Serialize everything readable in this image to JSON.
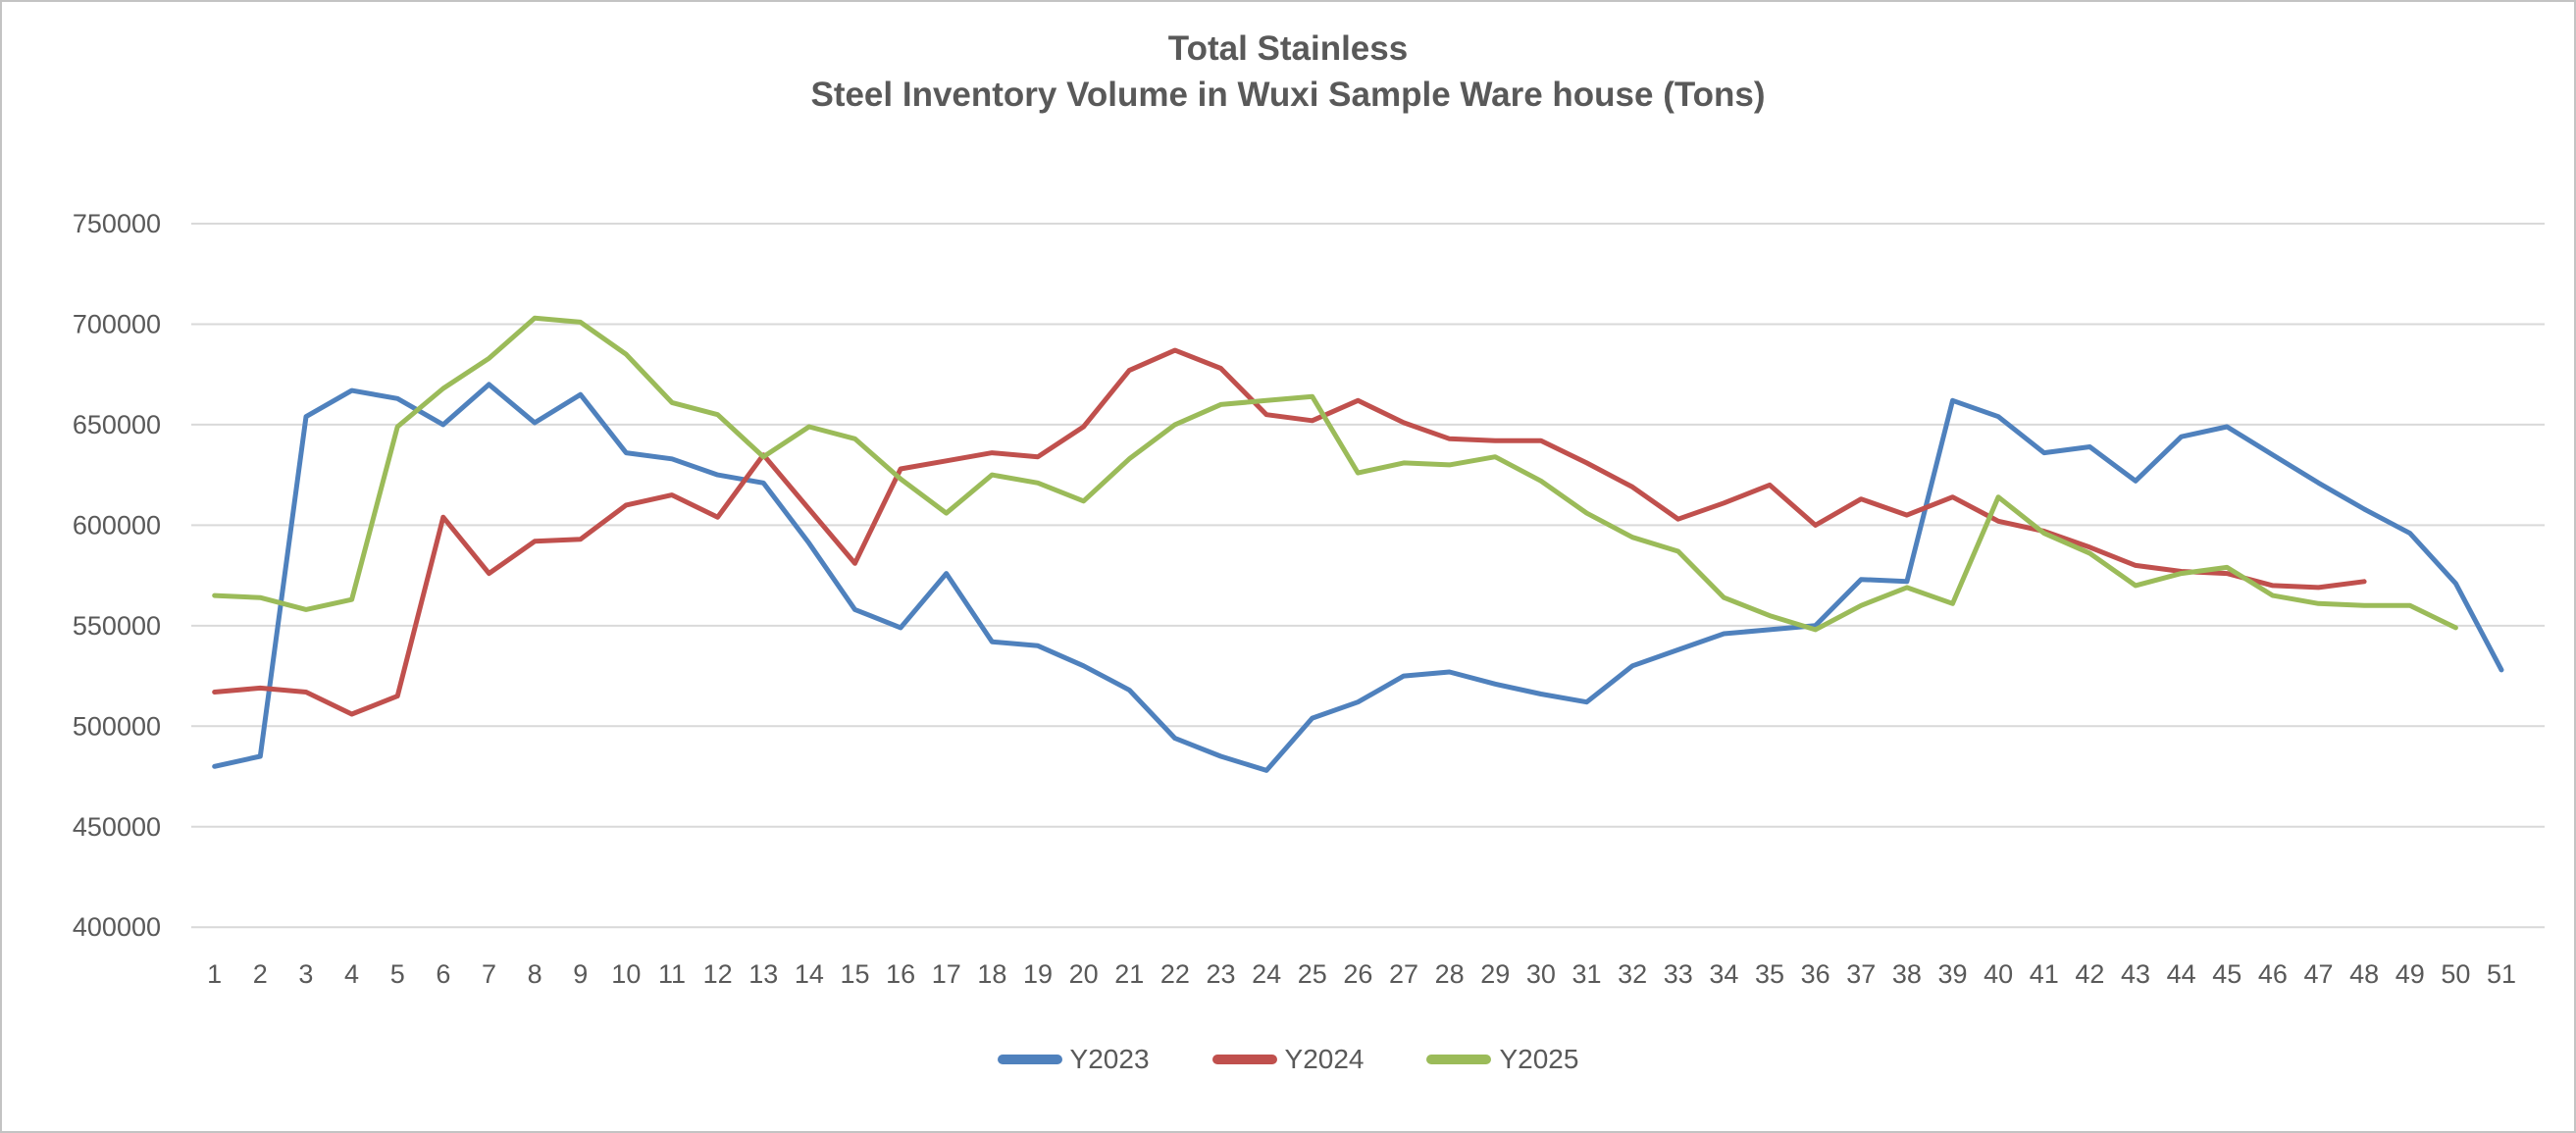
{
  "chart_data": {
    "type": "line",
    "title_line1": "Total Stainless",
    "title_line2": "Steel Inventory Volume in Wuxi Sample Ware house (Tons)",
    "xlabel": "",
    "ylabel": "",
    "ylim": [
      400000,
      750000
    ],
    "grid": true,
    "legend_position": "bottom",
    "y_ticks": [
      "750000",
      "700000",
      "650000",
      "600000",
      "550000",
      "500000",
      "450000",
      "400000"
    ],
    "x": [
      "1",
      "2",
      "3",
      "4",
      "5",
      "6",
      "7",
      "8",
      "9",
      "10",
      "11",
      "12",
      "13",
      "14",
      "15",
      "16",
      "17",
      "18",
      "19",
      "20",
      "21",
      "22",
      "23",
      "24",
      "25",
      "26",
      "27",
      "28",
      "29",
      "30",
      "31",
      "32",
      "33",
      "34",
      "35",
      "36",
      "37",
      "38",
      "39",
      "40",
      "41",
      "42",
      "43",
      "44",
      "45",
      "46",
      "47",
      "48",
      "49",
      "50",
      "51"
    ],
    "series": [
      {
        "name": "Y2023",
        "color": "#4F81BD",
        "values": [
          480000,
          485000,
          654000,
          667000,
          663000,
          650000,
          670000,
          651000,
          665000,
          636000,
          633000,
          625000,
          621000,
          591000,
          558000,
          549000,
          576000,
          542000,
          540000,
          530000,
          518000,
          494000,
          485000,
          478000,
          504000,
          512000,
          525000,
          527000,
          521000,
          516000,
          512000,
          530000,
          538000,
          546000,
          548000,
          550000,
          573000,
          572000,
          662000,
          654000,
          636000,
          639000,
          622000,
          644000,
          649000,
          635000,
          621000,
          608000,
          596000,
          571000,
          528000
        ]
      },
      {
        "name": "Y2024",
        "color": "#C0504D",
        "values": [
          517000,
          519000,
          517000,
          506000,
          515000,
          604000,
          576000,
          592000,
          593000,
          610000,
          615000,
          604000,
          635000,
          608000,
          581000,
          628000,
          632000,
          636000,
          634000,
          649000,
          677000,
          687000,
          678000,
          655000,
          652000,
          662000,
          651000,
          643000,
          642000,
          642000,
          631000,
          619000,
          603000,
          611000,
          620000,
          600000,
          613000,
          605000,
          614000,
          602000,
          597000,
          589000,
          580000,
          577000,
          576000,
          570000,
          569000,
          572000
        ]
      },
      {
        "name": "Y2025",
        "color": "#9BBB59",
        "values": [
          565000,
          564000,
          558000,
          563000,
          649000,
          668000,
          683000,
          703000,
          701000,
          685000,
          661000,
          655000,
          634000,
          649000,
          643000,
          623000,
          606000,
          625000,
          621000,
          612000,
          633000,
          650000,
          660000,
          662000,
          664000,
          626000,
          631000,
          630000,
          634000,
          622000,
          606000,
          594000,
          587000,
          564000,
          555000,
          548000,
          560000,
          569000,
          561000,
          614000,
          596000,
          586000,
          570000,
          576000,
          579000,
          565000,
          561000,
          560000,
          560000,
          549000
        ]
      }
    ]
  }
}
